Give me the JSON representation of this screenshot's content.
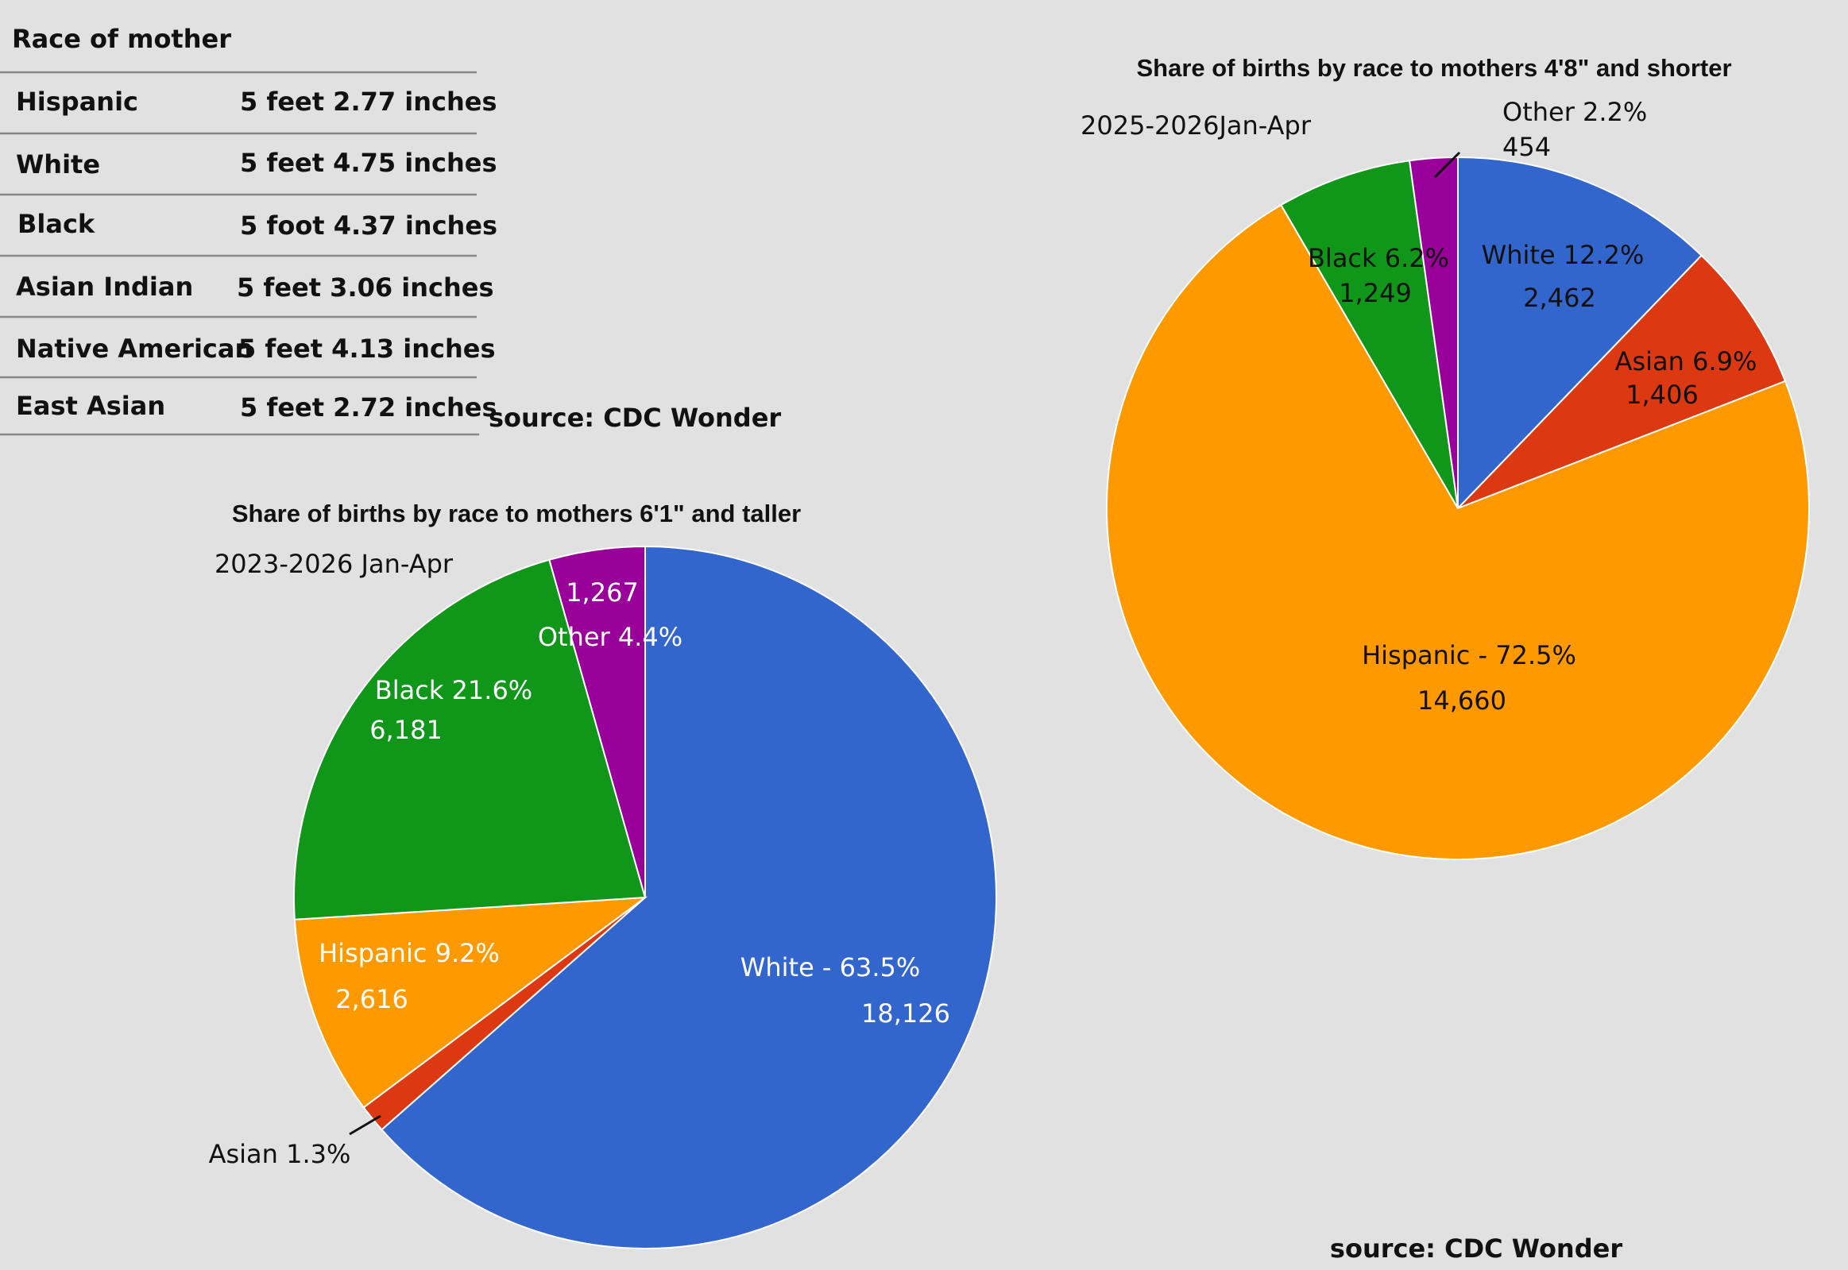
{
  "table": {
    "header": "Race of mother",
    "rows": [
      {
        "race": "Hispanic",
        "height": "5 feet 2.77 inches"
      },
      {
        "race": "White",
        "height": "5 feet 4.75 inches"
      },
      {
        "race": "Black",
        "height": "5 foot 4.37 inches"
      },
      {
        "race": "Asian Indian",
        "height": "5 feet 3.06 inches"
      },
      {
        "race": "Native American",
        "height": "5 feet 4.13 inches"
      },
      {
        "race": "East Asian",
        "height": "5 feet 2.72 inches"
      }
    ],
    "source": "source: CDC Wonder"
  },
  "colors": {
    "White": "#3366cc",
    "Asian": "#dc3912",
    "Hispanic": "#ff9900",
    "Black": "#109618",
    "Other": "#990099"
  },
  "chart_data": [
    {
      "type": "pie",
      "title": "Share of births by race to mothers 6'1\" and taller",
      "subtitle": "2023-2026 Jan-Apr",
      "slices": [
        {
          "name": "White",
          "percent": 63.5,
          "count": 18126,
          "label": "White - 63.5%",
          "count_label": "18,126"
        },
        {
          "name": "Asian",
          "percent": 1.3,
          "count": null,
          "label": "Asian 1.3%",
          "count_label": ""
        },
        {
          "name": "Hispanic",
          "percent": 9.2,
          "count": 2616,
          "label": "Hispanic 9.2%",
          "count_label": "2,616"
        },
        {
          "name": "Black",
          "percent": 21.6,
          "count": 6181,
          "label": "Black 21.6%",
          "count_label": "6,181"
        },
        {
          "name": "Other",
          "percent": 4.4,
          "count": 1267,
          "label": "Other 4.4%",
          "count_label": "1,267"
        }
      ]
    },
    {
      "type": "pie",
      "title": "Share of births by race to mothers 4'8\" and shorter",
      "subtitle": "2025-2026Jan-Apr",
      "slices": [
        {
          "name": "White",
          "percent": 12.2,
          "count": 2462,
          "label": "White 12.2%",
          "count_label": "2,462"
        },
        {
          "name": "Asian",
          "percent": 6.9,
          "count": 1406,
          "label": "Asian 6.9%",
          "count_label": "1,406"
        },
        {
          "name": "Hispanic",
          "percent": 72.5,
          "count": 14660,
          "label": "Hispanic - 72.5%",
          "count_label": "14,660"
        },
        {
          "name": "Black",
          "percent": 6.2,
          "count": 1249,
          "label": "Black 6.2%",
          "count_label": "1,249"
        },
        {
          "name": "Other",
          "percent": 2.2,
          "count": 454,
          "label": "Other 2.2%",
          "count_label": "454"
        }
      ]
    }
  ],
  "source_bottom": "source: CDC Wonder"
}
